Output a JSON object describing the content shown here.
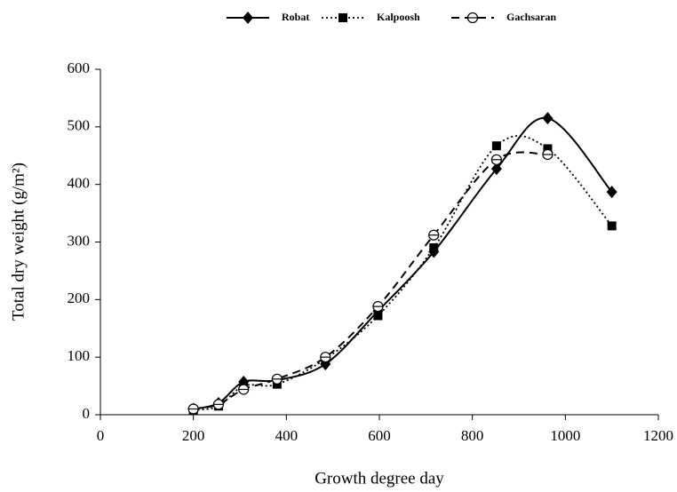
{
  "chart_data": {
    "type": "line",
    "x_label": "Growth degree day",
    "y_label": "Total dry weight (g/m²)",
    "x": [
      200,
      254,
      308,
      380,
      484,
      597,
      717,
      852,
      962,
      1100
    ],
    "series": [
      {
        "name": "Robat",
        "color": "#000000",
        "line_style": "solid",
        "marker": "diamond",
        "values": [
          10,
          20,
          57,
          60,
          88,
          180,
          283,
          427,
          515,
          387
        ]
      },
      {
        "name": "Kalpoosh",
        "color": "#000000",
        "line_style": "dotted",
        "marker": "square",
        "values": [
          8,
          15,
          50,
          53,
          97,
          172,
          290,
          467,
          462,
          328
        ]
      },
      {
        "name": "Gachsaran",
        "color": "#000000",
        "line_style": "dashed",
        "marker": "circle",
        "values": [
          10,
          18,
          44,
          62,
          100,
          188,
          312,
          443,
          452,
          null
        ]
      }
    ],
    "xlim": [
      0,
      1200
    ],
    "xticks": [
      0,
      200,
      400,
      600,
      800,
      1000,
      1200
    ],
    "ylim": [
      0,
      600
    ],
    "yticks": [
      0,
      100,
      200,
      300,
      400,
      500,
      600
    ],
    "smooth": true,
    "legend": "top"
  }
}
